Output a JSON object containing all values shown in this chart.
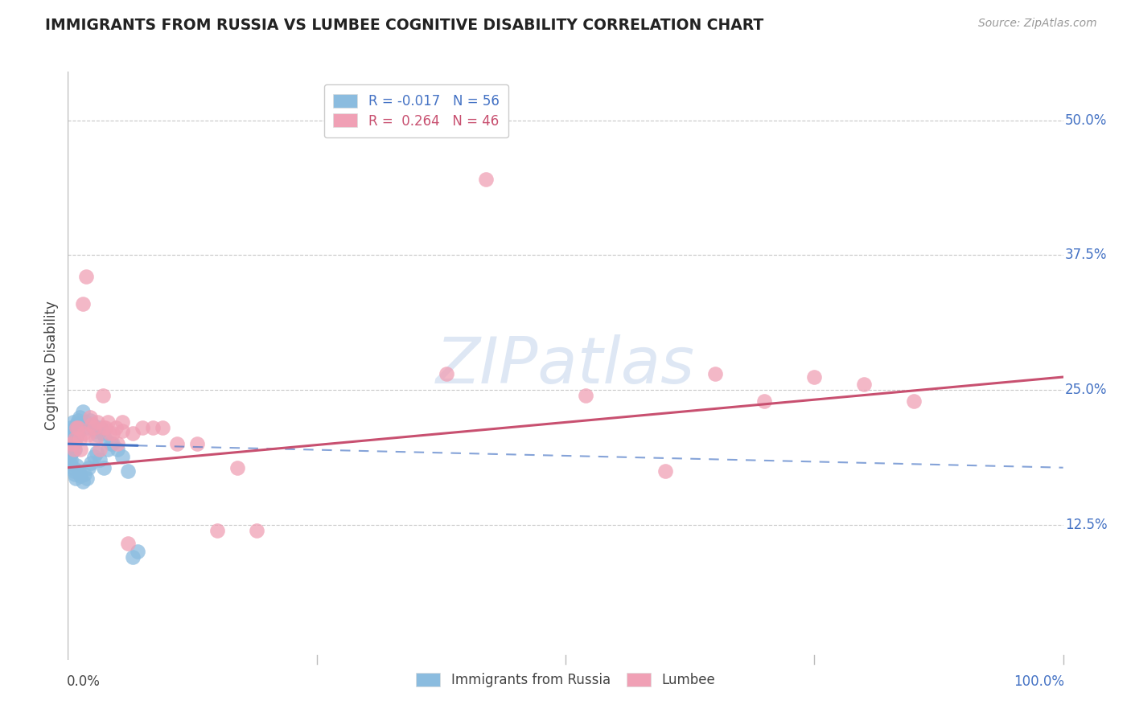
{
  "title": "IMMIGRANTS FROM RUSSIA VS LUMBEE COGNITIVE DISABILITY CORRELATION CHART",
  "source": "Source: ZipAtlas.com",
  "ylabel": "Cognitive Disability",
  "y_ticks": [
    0.125,
    0.25,
    0.375,
    0.5
  ],
  "y_tick_labels": [
    "12.5%",
    "25.0%",
    "37.5%",
    "50.0%"
  ],
  "x_min": 0.0,
  "x_max": 1.0,
  "y_min": 0.0,
  "y_max": 0.545,
  "legend_labels": [
    "Immigrants from Russia",
    "Lumbee"
  ],
  "legend_R": [
    -0.017,
    0.264
  ],
  "legend_N": [
    56,
    46
  ],
  "blue_color": "#8BBCDF",
  "pink_color": "#F0A0B5",
  "blue_line_color": "#4472C4",
  "pink_line_color": "#C85070",
  "watermark_color": "#C8D8EE",
  "blue_x": [
    0.005,
    0.003,
    0.007,
    0.009,
    0.002,
    0.004,
    0.006,
    0.008,
    0.01,
    0.012,
    0.005,
    0.007,
    0.003,
    0.006,
    0.004,
    0.008,
    0.01,
    0.012,
    0.015,
    0.018,
    0.02,
    0.022,
    0.025,
    0.028,
    0.03,
    0.033,
    0.035,
    0.038,
    0.04,
    0.043,
    0.001,
    0.002,
    0.003,
    0.004,
    0.005,
    0.006,
    0.007,
    0.008,
    0.009,
    0.011,
    0.013,
    0.015,
    0.017,
    0.019,
    0.021,
    0.023,
    0.026,
    0.029,
    0.032,
    0.036,
    0.045,
    0.05,
    0.055,
    0.06,
    0.065,
    0.07
  ],
  "blue_y": [
    0.22,
    0.215,
    0.21,
    0.218,
    0.205,
    0.208,
    0.212,
    0.216,
    0.222,
    0.218,
    0.2,
    0.195,
    0.198,
    0.202,
    0.192,
    0.205,
    0.21,
    0.225,
    0.23,
    0.22,
    0.215,
    0.222,
    0.218,
    0.212,
    0.208,
    0.215,
    0.21,
    0.205,
    0.195,
    0.2,
    0.188,
    0.182,
    0.185,
    0.192,
    0.178,
    0.175,
    0.172,
    0.168,
    0.18,
    0.175,
    0.17,
    0.165,
    0.172,
    0.168,
    0.178,
    0.182,
    0.188,
    0.192,
    0.185,
    0.178,
    0.2,
    0.195,
    0.188,
    0.175,
    0.095,
    0.1
  ],
  "pink_x": [
    0.004,
    0.007,
    0.01,
    0.013,
    0.016,
    0.02,
    0.024,
    0.028,
    0.032,
    0.036,
    0.04,
    0.045,
    0.05,
    0.055,
    0.06,
    0.006,
    0.009,
    0.012,
    0.018,
    0.022,
    0.026,
    0.03,
    0.035,
    0.042,
    0.048,
    0.055,
    0.065,
    0.075,
    0.085,
    0.095,
    0.11,
    0.13,
    0.15,
    0.17,
    0.19,
    0.38,
    0.42,
    0.52,
    0.6,
    0.65,
    0.7,
    0.75,
    0.8,
    0.85,
    0.015,
    0.038
  ],
  "pink_y": [
    0.2,
    0.205,
    0.215,
    0.195,
    0.21,
    0.208,
    0.218,
    0.205,
    0.195,
    0.215,
    0.22,
    0.21,
    0.2,
    0.212,
    0.108,
    0.195,
    0.215,
    0.205,
    0.355,
    0.225,
    0.215,
    0.22,
    0.245,
    0.21,
    0.215,
    0.22,
    0.21,
    0.215,
    0.215,
    0.215,
    0.2,
    0.2,
    0.12,
    0.178,
    0.12,
    0.265,
    0.445,
    0.245,
    0.175,
    0.265,
    0.24,
    0.262,
    0.255,
    0.24,
    0.33,
    0.215
  ],
  "blue_trend_x0": 0.0,
  "blue_trend_x_solid_end": 0.07,
  "blue_trend_y0": 0.2,
  "blue_trend_y_end": 0.178,
  "pink_trend_x0": 0.0,
  "pink_trend_x1": 1.0,
  "pink_trend_y0": 0.178,
  "pink_trend_y1": 0.262
}
